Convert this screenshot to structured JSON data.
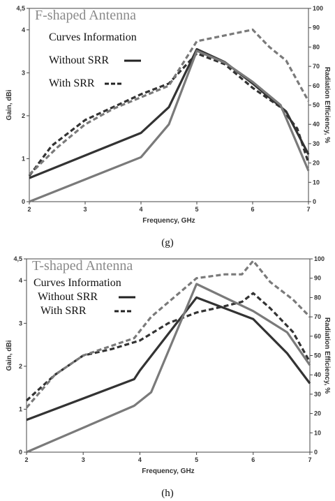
{
  "chart_data": [
    {
      "type": "line",
      "title": "F-shaped Antenna",
      "caption": "(g)",
      "xlabel": "Frequency, GHz",
      "ylabel": "Gain, dBi",
      "y2label": "Radiation Efficiency, %",
      "xlim": [
        2,
        7
      ],
      "ylim": [
        0,
        4.5
      ],
      "y2lim": [
        0,
        100
      ],
      "x_ticks": [
        "2",
        "3",
        "4",
        "5",
        "6",
        "7"
      ],
      "y_ticks": [
        "0",
        "1",
        "2",
        "3",
        "4",
        "4,5"
      ],
      "y2_ticks": [
        "0",
        "10",
        "20",
        "30",
        "40",
        "50",
        "60",
        "70",
        "80",
        "90",
        "100"
      ],
      "grid": false,
      "legend": {
        "heading": "Curves Information",
        "entries": [
          {
            "label": "Without SRR",
            "style": "solid"
          },
          {
            "label": "With SRR",
            "style": "dashed"
          }
        ]
      },
      "series": [
        {
          "axis": "gain",
          "style": "solid",
          "color": "#333333",
          "points": [
            [
              2,
              0.55
            ],
            [
              4,
              1.6
            ],
            [
              4.5,
              2.2
            ],
            [
              5,
              3.55
            ],
            [
              5.5,
              3.25
            ],
            [
              6,
              2.75
            ],
            [
              6.6,
              2.1
            ],
            [
              7,
              1.1
            ]
          ]
        },
        {
          "axis": "gain",
          "style": "dashed",
          "color": "#333333",
          "points": [
            [
              2,
              0.6
            ],
            [
              2.4,
              1.3
            ],
            [
              3,
              1.9
            ],
            [
              3.5,
              2.2
            ],
            [
              4,
              2.5
            ],
            [
              4.5,
              2.75
            ],
            [
              5,
              3.45
            ],
            [
              5.5,
              3.2
            ],
            [
              6,
              2.65
            ],
            [
              6.5,
              2.2
            ],
            [
              6.8,
              1.7
            ],
            [
              7,
              0.9
            ]
          ]
        },
        {
          "axis": "efficiency",
          "style": "solid",
          "color": "#7a7a7a",
          "points": [
            [
              2,
              0
            ],
            [
              4,
              23
            ],
            [
              4.5,
              40
            ],
            [
              5,
              78
            ],
            [
              5.5,
              72
            ],
            [
              6,
              62
            ],
            [
              6.5,
              50
            ],
            [
              7,
              16
            ]
          ]
        },
        {
          "axis": "efficiency",
          "style": "dashed",
          "color": "#7a7a7a",
          "points": [
            [
              2,
              14
            ],
            [
              2.5,
              28
            ],
            [
              3,
              40
            ],
            [
              3.5,
              48
            ],
            [
              4,
              54
            ],
            [
              4.5,
              60
            ],
            [
              5,
              83
            ],
            [
              5.5,
              86
            ],
            [
              6,
              89
            ],
            [
              6.3,
              80
            ],
            [
              6.6,
              73
            ],
            [
              7,
              52
            ]
          ]
        }
      ]
    },
    {
      "type": "line",
      "title": "T-shaped Antenna",
      "caption": "(h)",
      "xlabel": "Frequency, GHz",
      "ylabel": "Gain, dBi",
      "y2label": "Radiation Efficiency, %",
      "xlim": [
        2,
        7
      ],
      "ylim": [
        0,
        4.5
      ],
      "y2lim": [
        0,
        100
      ],
      "x_ticks": [
        "2",
        "3",
        "4",
        "5",
        "6",
        "7"
      ],
      "y_ticks": [
        "0",
        "1",
        "2",
        "3",
        "4",
        "4,5"
      ],
      "y2_ticks": [
        "0",
        "10",
        "20",
        "30",
        "40",
        "50",
        "60",
        "70",
        "80",
        "90",
        "100"
      ],
      "grid": false,
      "legend": {
        "heading": "Curves Information",
        "entries": [
          {
            "label": "Without SRR",
            "style": "solid"
          },
          {
            "label": "With SRR",
            "style": "dashed"
          }
        ]
      },
      "series": [
        {
          "axis": "gain",
          "style": "solid",
          "color": "#333333",
          "points": [
            [
              2,
              0.75
            ],
            [
              3.9,
              1.7
            ],
            [
              4,
              1.9
            ],
            [
              5,
              3.6
            ],
            [
              6,
              3.1
            ],
            [
              6.6,
              2.3
            ],
            [
              7,
              1.6
            ]
          ]
        },
        {
          "axis": "gain",
          "style": "dashed",
          "color": "#333333",
          "points": [
            [
              2,
              1.2
            ],
            [
              2.5,
              1.8
            ],
            [
              3,
              2.25
            ],
            [
              3.5,
              2.4
            ],
            [
              4,
              2.6
            ],
            [
              4.5,
              3.0
            ],
            [
              5,
              3.25
            ],
            [
              5.5,
              3.4
            ],
            [
              5.8,
              3.5
            ],
            [
              6,
              3.7
            ],
            [
              6.3,
              3.35
            ],
            [
              6.7,
              2.8
            ],
            [
              7,
              2.1
            ]
          ]
        },
        {
          "axis": "efficiency",
          "style": "solid",
          "color": "#7a7a7a",
          "points": [
            [
              2,
              0
            ],
            [
              3.9,
              24
            ],
            [
              4.2,
              31
            ],
            [
              5,
              87
            ],
            [
              6,
              73
            ],
            [
              6.6,
              62
            ],
            [
              7,
              45
            ]
          ]
        },
        {
          "axis": "efficiency",
          "style": "dashed",
          "color": "#7a7a7a",
          "points": [
            [
              2,
              23
            ],
            [
              2.5,
              40
            ],
            [
              3,
              50
            ],
            [
              3.5,
              55
            ],
            [
              3.9,
              59
            ],
            [
              4.2,
              70
            ],
            [
              5,
              90
            ],
            [
              5.5,
              92
            ],
            [
              5.8,
              92
            ],
            [
              6,
              99
            ],
            [
              6.3,
              88
            ],
            [
              6.7,
              79
            ],
            [
              7,
              70
            ]
          ]
        }
      ]
    }
  ]
}
